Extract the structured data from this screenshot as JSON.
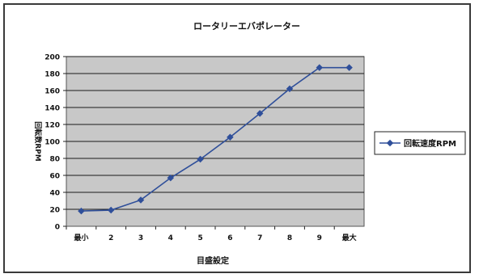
{
  "chart_data": {
    "type": "line",
    "title": "ロータリーエバポレーター",
    "xlabel": "目盛設定",
    "ylabel": "回転数RPM",
    "categories": [
      "最小",
      "2",
      "3",
      "4",
      "5",
      "6",
      "7",
      "8",
      "9",
      "最大"
    ],
    "ylim": [
      0,
      200
    ],
    "yticks": [
      0,
      20,
      40,
      60,
      80,
      100,
      120,
      140,
      160,
      180,
      200
    ],
    "series": [
      {
        "name": "回転速度RPM",
        "values": [
          18,
          19,
          31,
          57,
          79,
          105,
          133,
          162,
          187,
          187
        ],
        "color": "#2f4f9a"
      }
    ],
    "grid": true,
    "legend": "right",
    "plot_bg": "#c8c8c8"
  }
}
